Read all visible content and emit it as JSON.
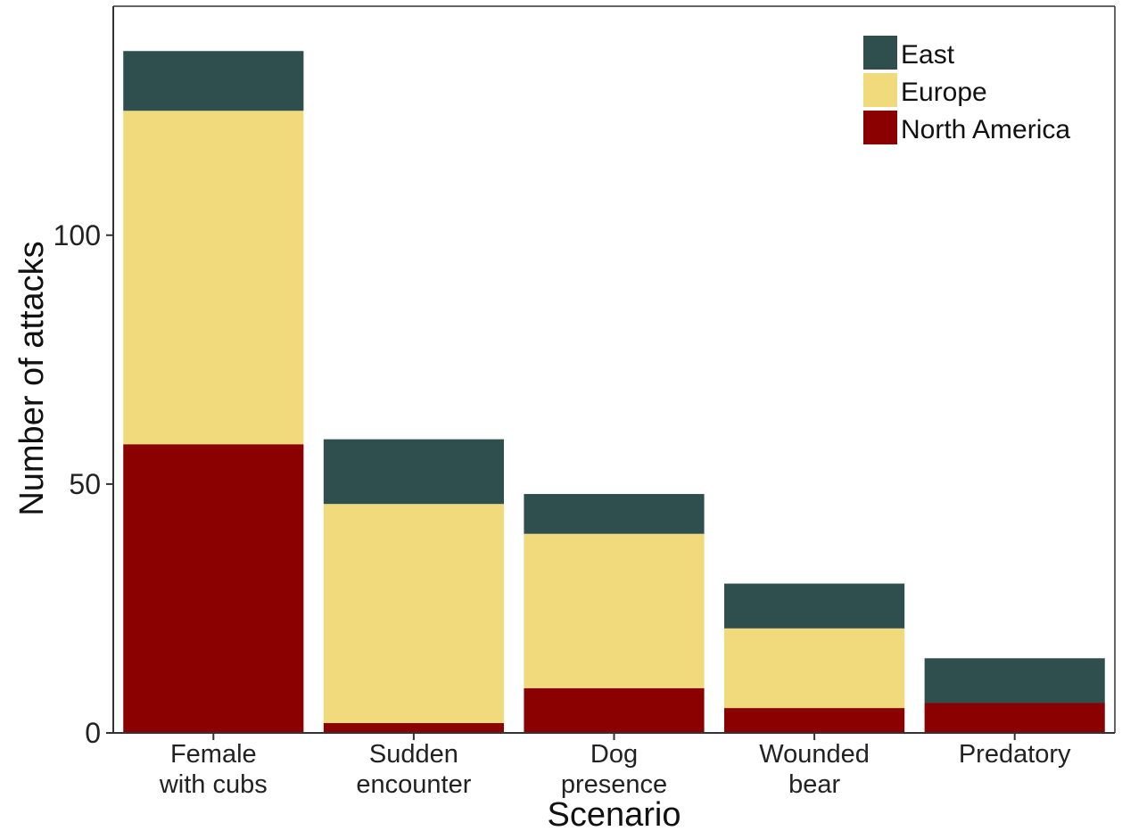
{
  "chart_data": {
    "type": "bar",
    "stacked": true,
    "categories": [
      [
        "Female",
        "with cubs"
      ],
      [
        "Sudden",
        "encounter"
      ],
      [
        "Dog",
        "presence"
      ],
      [
        "Wounded",
        "bear"
      ],
      [
        "Predatory"
      ]
    ],
    "series": [
      {
        "name": "North America",
        "color": "#8b0000",
        "values": [
          58,
          2,
          9,
          5,
          6
        ]
      },
      {
        "name": "Europe",
        "color": "#f0da7c",
        "values": [
          67,
          44,
          31,
          16,
          0
        ]
      },
      {
        "name": "East",
        "color": "#2f4f4f",
        "values": [
          12,
          13,
          8,
          9,
          9
        ]
      }
    ],
    "legend_order": [
      "East",
      "Europe",
      "North America"
    ],
    "legend_position": "top-right",
    "xlabel": "Scenario",
    "ylabel": "Number of attacks",
    "ylim": [
      0,
      146
    ],
    "yticks": [
      0,
      50,
      100
    ],
    "grid": false
  }
}
